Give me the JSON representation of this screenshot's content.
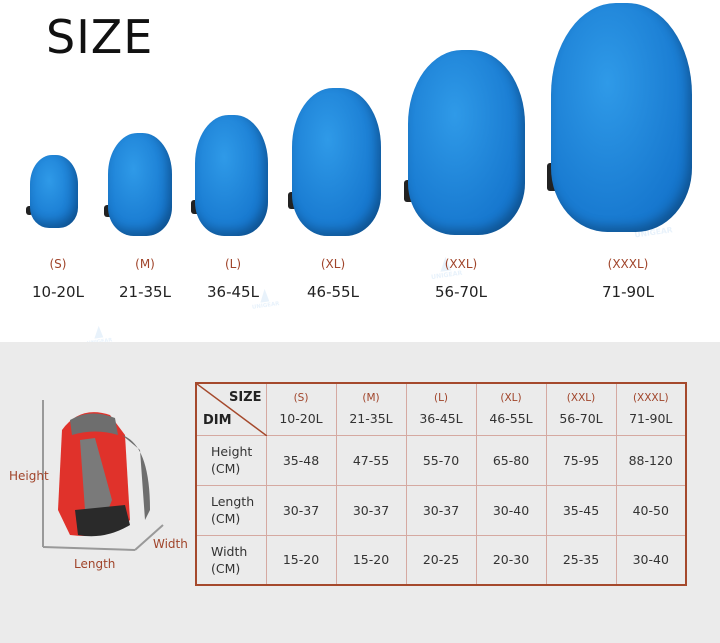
{
  "title": "SIZE",
  "brand": "UNIGEAR",
  "sizes": [
    {
      "label": "(S)",
      "capacity": "10-20L"
    },
    {
      "label": "(M)",
      "capacity": "21-35L"
    },
    {
      "label": "(L)",
      "capacity": "36-45L"
    },
    {
      "label": "(XL)",
      "capacity": "46-55L"
    },
    {
      "label": "(XXL)",
      "capacity": "56-70L"
    },
    {
      "label": "(XXXL)",
      "capacity": "71-90L"
    }
  ],
  "diagram": {
    "height": "Height",
    "length": "Length",
    "width": "Width"
  },
  "table": {
    "corner_top": "SIZE",
    "corner_bottom": "DIM",
    "rows": [
      {
        "label": "Height",
        "unit": "(CM)",
        "values": [
          "35-48",
          "47-55",
          "55-70",
          "65-80",
          "75-95",
          "88-120"
        ]
      },
      {
        "label": "Length",
        "unit": "(CM)",
        "values": [
          "30-37",
          "30-37",
          "30-37",
          "30-40",
          "35-45",
          "40-50"
        ]
      },
      {
        "label": "Width",
        "unit": "(CM)",
        "values": [
          "15-20",
          "15-20",
          "20-25",
          "20-30",
          "25-35",
          "30-40"
        ]
      }
    ]
  },
  "colors": {
    "cover": "#1778cf",
    "accent": "#a0442a",
    "table_border": "#a5492c",
    "bg_bottom": "#ebebeb"
  }
}
